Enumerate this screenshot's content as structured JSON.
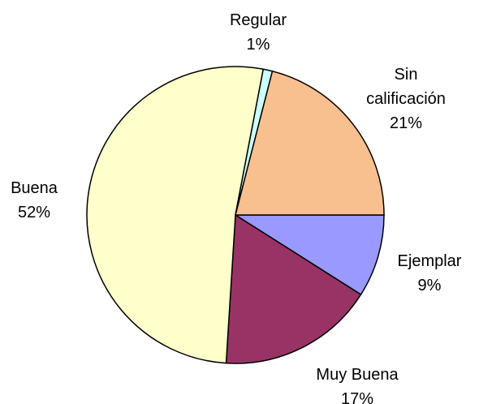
{
  "chart_data": {
    "type": "pie",
    "categories": [
      "Ejemplar",
      "Muy Buena",
      "Buena",
      "Regular",
      "Sin calificación"
    ],
    "values": [
      9,
      17,
      52,
      1,
      21
    ],
    "value_labels": [
      "9%",
      "17%",
      "52%",
      "1%",
      "21%"
    ],
    "colors": [
      "#9999ff",
      "#993366",
      "#ffffcc",
      "#ccffff",
      "#f9c08f"
    ]
  }
}
